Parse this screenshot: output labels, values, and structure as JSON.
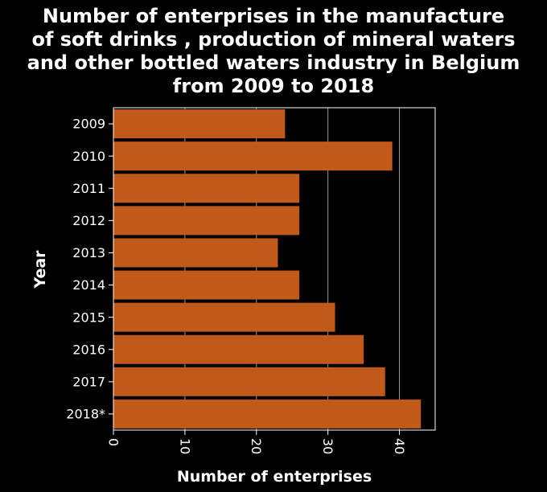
{
  "chart_data": {
    "type": "bar",
    "orientation": "horizontal",
    "title_lines": [
      "Number of enterprises in the manufacture",
      "of soft drinks , production of mineral waters",
      "and other bottled waters industry in Belgium",
      "from 2009 to 2018"
    ],
    "xlabel": "Number of enterprises",
    "ylabel": "Year",
    "categories": [
      "2009",
      "2010",
      "2011",
      "2012",
      "2013",
      "2014",
      "2015",
      "2016",
      "2017",
      "2018*"
    ],
    "values": [
      24,
      39,
      26,
      26,
      23,
      26,
      31,
      35,
      38,
      43
    ],
    "xlim": [
      0,
      45
    ],
    "xticks": [
      "0",
      "10",
      "20",
      "30",
      "40"
    ],
    "grid": true,
    "legend": "none",
    "colors": {
      "bar": "#c1591b",
      "background": "#000000",
      "grid": "#9a9a9a",
      "text": "#ffffff"
    }
  }
}
